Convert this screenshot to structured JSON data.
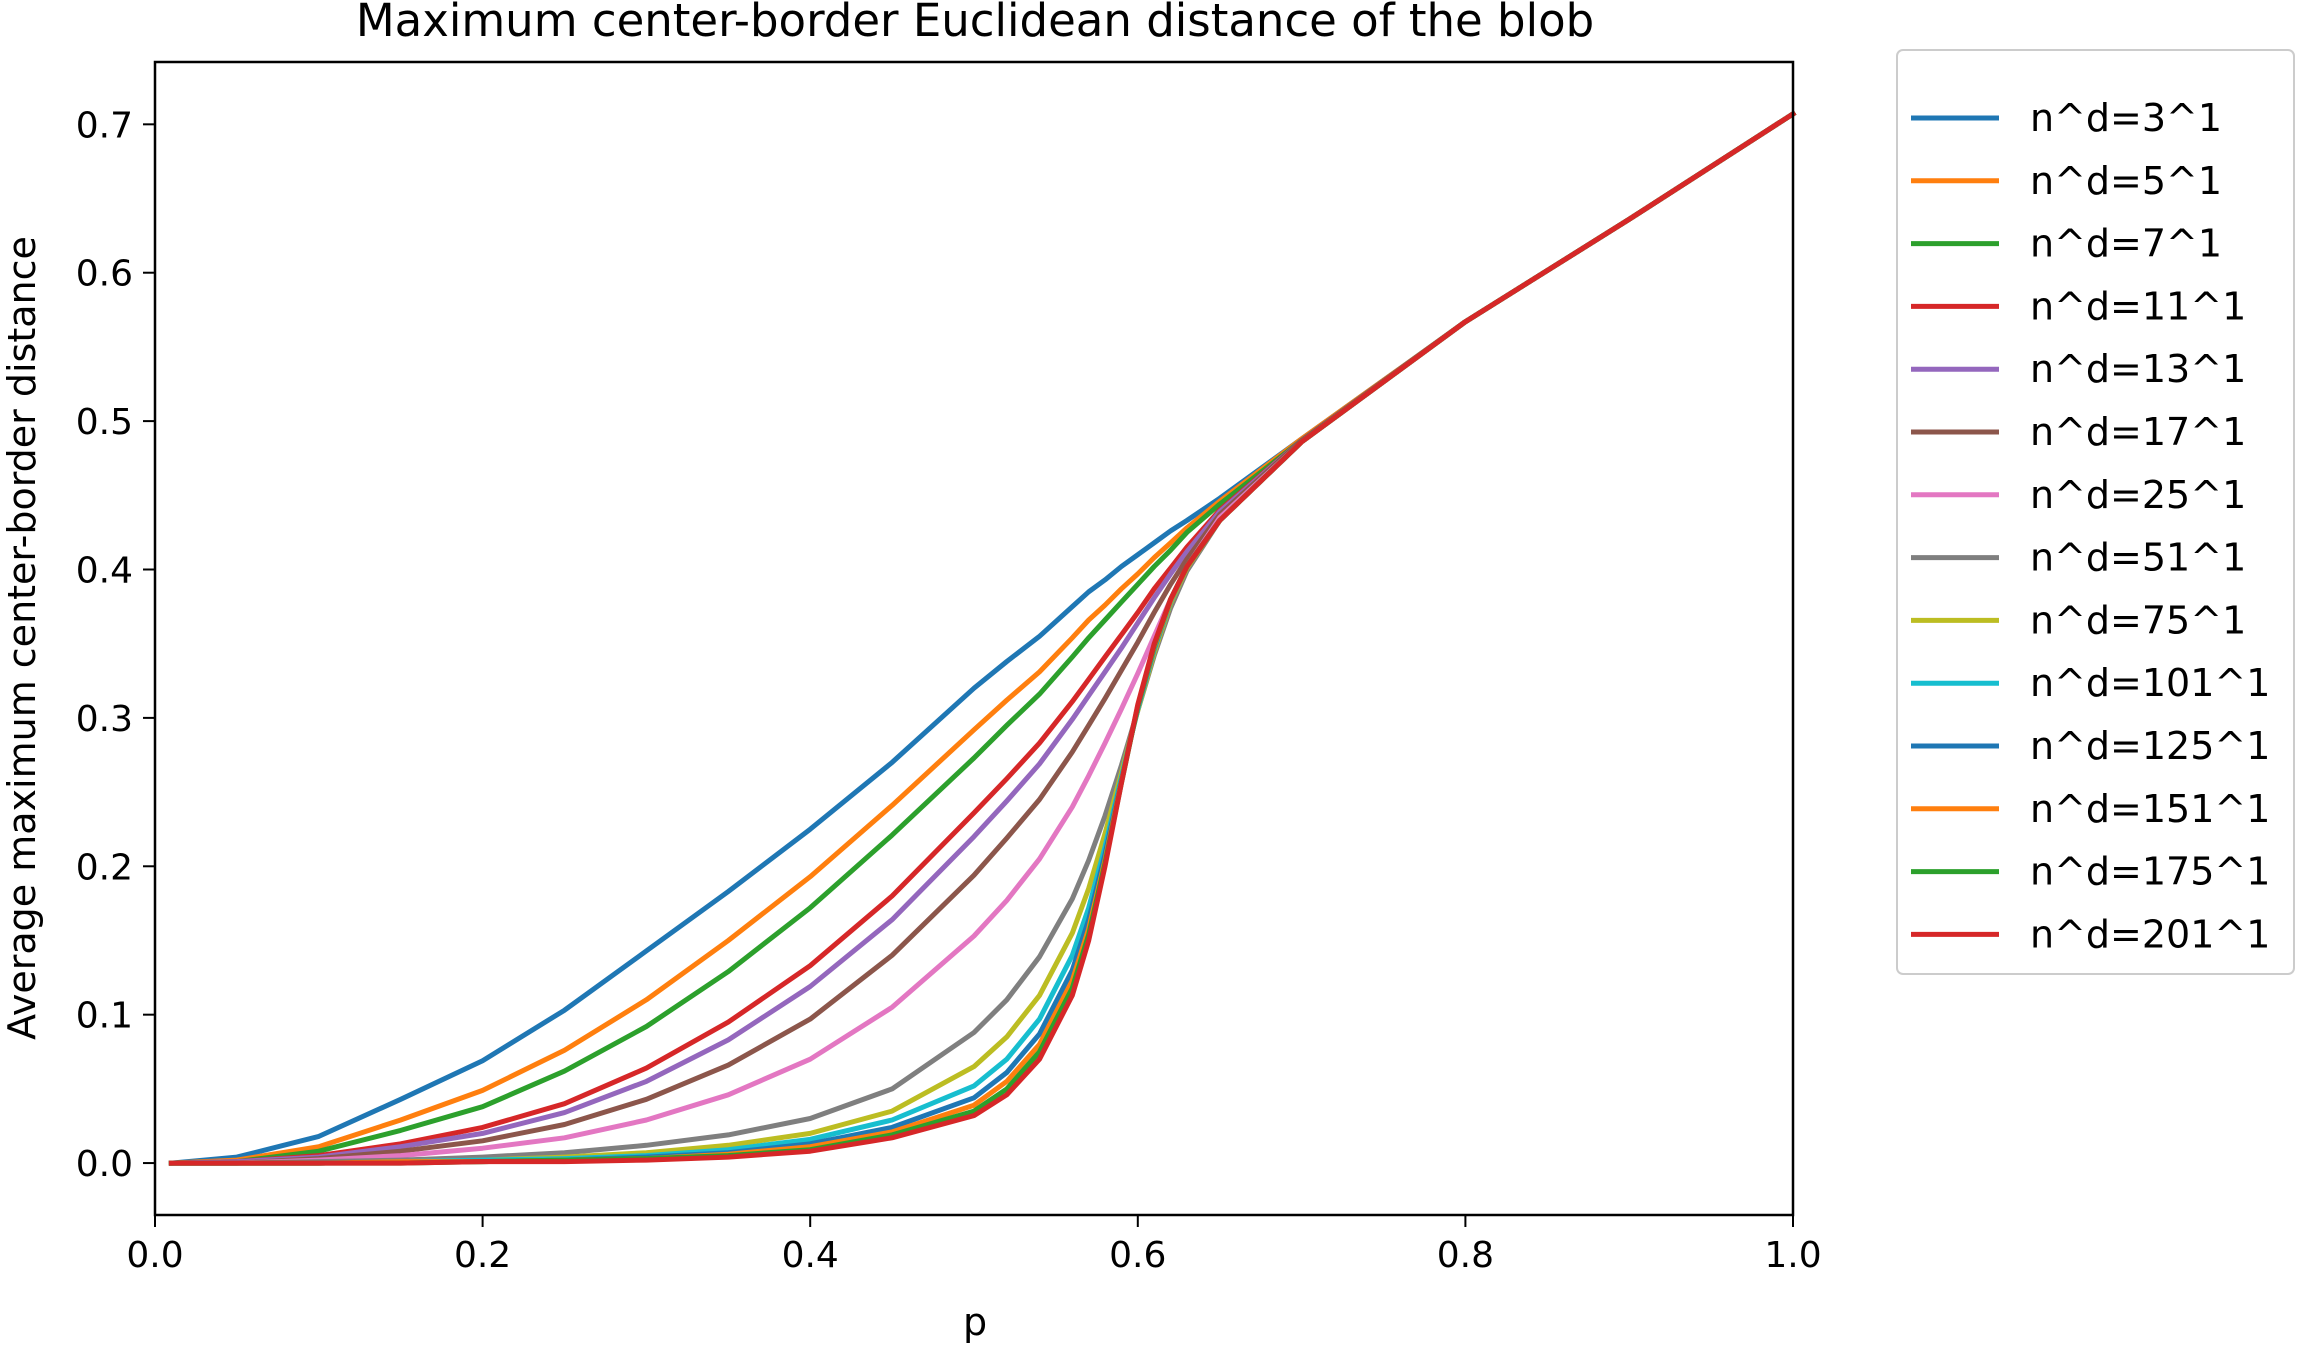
{
  "chart_data": {
    "type": "line",
    "title": "Maximum center-border Euclidean distance of the blob",
    "xlabel": "p",
    "ylabel": "Average maximum center-border distance",
    "xlim": [
      0.0,
      1.0
    ],
    "ylim": [
      -0.035,
      0.742
    ],
    "xticks": [
      "0.0",
      "0.2",
      "0.4",
      "0.6",
      "0.8",
      "1.0"
    ],
    "yticks": [
      "0.0",
      "0.1",
      "0.2",
      "0.3",
      "0.4",
      "0.5",
      "0.6",
      "0.7"
    ],
    "grid": false,
    "legend_position": "outside-right",
    "x": [
      0.01,
      0.05,
      0.1,
      0.15,
      0.2,
      0.25,
      0.3,
      0.35,
      0.4,
      0.45,
      0.5,
      0.52,
      0.54,
      0.56,
      0.57,
      0.58,
      0.59,
      0.6,
      0.61,
      0.62,
      0.63,
      0.65,
      0.7,
      0.8,
      0.9,
      1.0
    ],
    "series": [
      {
        "name": "n^d=3^1",
        "color": "#1f77b4",
        "values": [
          0.0,
          0.004,
          0.018,
          0.043,
          0.069,
          0.103,
          0.143,
          0.183,
          0.225,
          0.27,
          0.32,
          0.338,
          0.355,
          0.375,
          0.385,
          0.393,
          0.402,
          0.41,
          0.418,
          0.426,
          0.433,
          0.448,
          0.488,
          0.567,
          0.636,
          0.707
        ]
      },
      {
        "name": "n^d=5^1",
        "color": "#ff7f0e",
        "values": [
          0.0,
          0.002,
          0.011,
          0.029,
          0.049,
          0.076,
          0.11,
          0.15,
          0.193,
          0.241,
          0.292,
          0.312,
          0.331,
          0.354,
          0.366,
          0.376,
          0.387,
          0.397,
          0.408,
          0.418,
          0.428,
          0.446,
          0.488,
          0.567,
          0.636,
          0.707
        ]
      },
      {
        "name": "n^d=7^1",
        "color": "#2ca02c",
        "values": [
          0.0,
          0.001,
          0.008,
          0.022,
          0.038,
          0.062,
          0.092,
          0.129,
          0.172,
          0.221,
          0.273,
          0.295,
          0.316,
          0.341,
          0.354,
          0.366,
          0.378,
          0.39,
          0.402,
          0.413,
          0.425,
          0.444,
          0.487,
          0.567,
          0.636,
          0.707
        ]
      },
      {
        "name": "n^d=11^1",
        "color": "#d62728",
        "values": [
          0.0,
          0.001,
          0.005,
          0.013,
          0.024,
          0.04,
          0.064,
          0.095,
          0.133,
          0.18,
          0.236,
          0.259,
          0.283,
          0.311,
          0.326,
          0.341,
          0.356,
          0.371,
          0.387,
          0.401,
          0.415,
          0.44,
          0.487,
          0.567,
          0.636,
          0.707
        ]
      },
      {
        "name": "n^d=13^1",
        "color": "#9467bd",
        "values": [
          0.0,
          0.001,
          0.004,
          0.011,
          0.02,
          0.034,
          0.055,
          0.083,
          0.119,
          0.164,
          0.22,
          0.244,
          0.269,
          0.299,
          0.315,
          0.331,
          0.347,
          0.364,
          0.381,
          0.397,
          0.412,
          0.439,
          0.487,
          0.567,
          0.636,
          0.707
        ]
      },
      {
        "name": "n^d=17^1",
        "color": "#8c564b",
        "values": [
          0.0,
          0.0,
          0.003,
          0.008,
          0.015,
          0.026,
          0.043,
          0.066,
          0.097,
          0.14,
          0.194,
          0.219,
          0.245,
          0.277,
          0.295,
          0.313,
          0.332,
          0.351,
          0.371,
          0.39,
          0.407,
          0.437,
          0.487,
          0.567,
          0.636,
          0.707
        ]
      },
      {
        "name": "n^d=25^1",
        "color": "#e377c2",
        "values": [
          0.0,
          0.0,
          0.002,
          0.005,
          0.01,
          0.017,
          0.029,
          0.046,
          0.07,
          0.105,
          0.153,
          0.177,
          0.205,
          0.24,
          0.261,
          0.283,
          0.306,
          0.33,
          0.355,
          0.38,
          0.402,
          0.435,
          0.486,
          0.567,
          0.636,
          0.707
        ]
      },
      {
        "name": "n^d=51^1",
        "color": "#7f7f7f",
        "values": [
          0.0,
          0.0,
          0.001,
          0.002,
          0.004,
          0.007,
          0.012,
          0.019,
          0.03,
          0.05,
          0.088,
          0.11,
          0.139,
          0.178,
          0.204,
          0.234,
          0.268,
          0.305,
          0.342,
          0.374,
          0.399,
          0.433,
          0.486,
          0.567,
          0.636,
          0.707
        ]
      },
      {
        "name": "n^d=75^1",
        "color": "#bcbd22",
        "values": [
          0.0,
          0.0,
          0.0,
          0.001,
          0.002,
          0.004,
          0.007,
          0.012,
          0.02,
          0.035,
          0.065,
          0.085,
          0.113,
          0.155,
          0.185,
          0.222,
          0.263,
          0.305,
          0.344,
          0.377,
          0.401,
          0.433,
          0.486,
          0.567,
          0.636,
          0.707
        ]
      },
      {
        "name": "n^d=101^1",
        "color": "#17becf",
        "values": [
          0.0,
          0.0,
          0.0,
          0.001,
          0.002,
          0.003,
          0.005,
          0.009,
          0.016,
          0.029,
          0.052,
          0.07,
          0.097,
          0.14,
          0.172,
          0.213,
          0.26,
          0.306,
          0.346,
          0.378,
          0.402,
          0.433,
          0.486,
          0.567,
          0.636,
          0.707
        ]
      },
      {
        "name": "n^d=125^1",
        "color": "#1f77b4",
        "values": [
          0.0,
          0.0,
          0.0,
          0.001,
          0.001,
          0.002,
          0.004,
          0.007,
          0.013,
          0.024,
          0.044,
          0.061,
          0.087,
          0.13,
          0.164,
          0.208,
          0.258,
          0.307,
          0.347,
          0.379,
          0.402,
          0.433,
          0.486,
          0.567,
          0.636,
          0.707
        ]
      },
      {
        "name": "n^d=151^1",
        "color": "#ff7f0e",
        "values": [
          0.0,
          0.0,
          0.0,
          0.001,
          0.001,
          0.002,
          0.003,
          0.006,
          0.011,
          0.021,
          0.039,
          0.055,
          0.08,
          0.123,
          0.158,
          0.204,
          0.257,
          0.308,
          0.348,
          0.379,
          0.402,
          0.433,
          0.486,
          0.567,
          0.636,
          0.707
        ]
      },
      {
        "name": "n^d=175^1",
        "color": "#2ca02c",
        "values": [
          0.0,
          0.0,
          0.0,
          0.0,
          0.001,
          0.002,
          0.003,
          0.005,
          0.009,
          0.019,
          0.035,
          0.05,
          0.075,
          0.118,
          0.154,
          0.202,
          0.256,
          0.308,
          0.349,
          0.38,
          0.402,
          0.433,
          0.486,
          0.567,
          0.636,
          0.707
        ]
      },
      {
        "name": "n^d=201^1",
        "color": "#d62728",
        "values": [
          0.0,
          0.0,
          0.0,
          0.0,
          0.001,
          0.001,
          0.002,
          0.004,
          0.008,
          0.017,
          0.032,
          0.046,
          0.07,
          0.113,
          0.15,
          0.2,
          0.256,
          0.309,
          0.35,
          0.38,
          0.402,
          0.433,
          0.486,
          0.567,
          0.636,
          0.707
        ]
      }
    ]
  }
}
